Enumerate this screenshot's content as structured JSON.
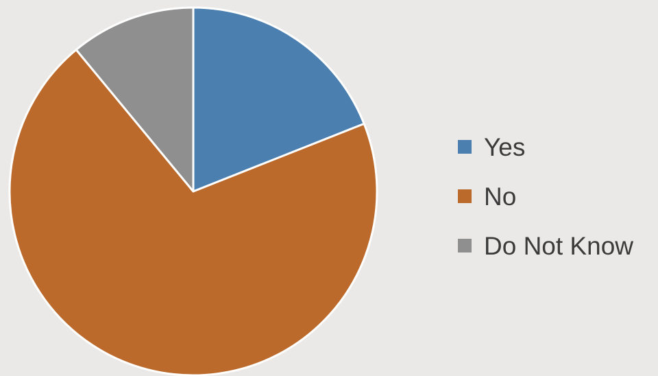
{
  "chart_data": {
    "type": "pie",
    "title": "",
    "categories": [
      "Yes",
      "No",
      "Do Not Know"
    ],
    "values": [
      19,
      70,
      11
    ],
    "colors": [
      "#4a7fb0",
      "#bc6a2c",
      "#8f8f8f"
    ],
    "start_angle_deg": 0,
    "direction": "clockwise",
    "slice_border_color": "#ffffff",
    "legend": "right",
    "grid": false
  },
  "legend": {
    "items": [
      {
        "label": "Yes",
        "color": "#4a7fb0"
      },
      {
        "label": "No",
        "color": "#bc6a2c"
      },
      {
        "label": "Do Not Know",
        "color": "#8f8f8f"
      }
    ]
  }
}
